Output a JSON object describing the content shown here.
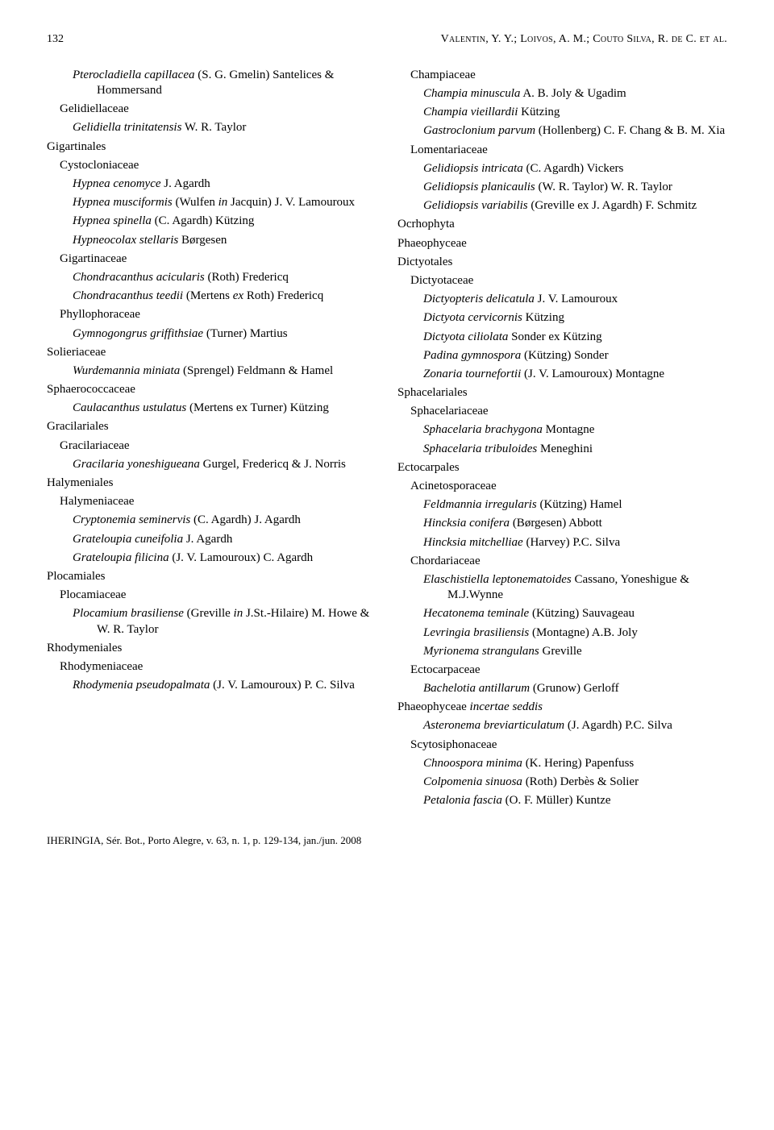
{
  "header": {
    "page_number": "132",
    "running_head": "Valentin, Y. Y.; Loivos, A. M.; Couto Silva, R. de C. et al."
  },
  "footer": "IHERINGIA, Sér. Bot., Porto Alegre, v. 63, n. 1, p. 129-134, jan./jun. 2008",
  "left": [
    {
      "lvl": 2,
      "html": "<em>Pterocladiella capillacea</em> (S. G. Gmelin) Santelices & Hommersand"
    },
    {
      "lvl": 1,
      "html": "Gelidiellaceae"
    },
    {
      "lvl": 2,
      "html": "<em>Gelidiella trinitatensis</em> W. R. Taylor"
    },
    {
      "lvl": 0,
      "html": "Gigartinales"
    },
    {
      "lvl": 1,
      "html": "Cystocloniaceae"
    },
    {
      "lvl": 2,
      "html": "<em>Hypnea cenomyce</em> J. Agardh"
    },
    {
      "lvl": 2,
      "html": "<em>Hypnea musciformis</em> (Wulfen <em>in</em> Jacquin) J. V. Lamouroux"
    },
    {
      "lvl": 2,
      "html": "<em>Hypnea spinella</em> (C. Agardh) Kützing"
    },
    {
      "lvl": 2,
      "html": "<em>Hypneocolax stellaris</em> Børgesen"
    },
    {
      "lvl": 1,
      "html": "Gigartinaceae"
    },
    {
      "lvl": 2,
      "html": "<em>Chondracanthus acicularis</em> (Roth) Fredericq"
    },
    {
      "lvl": 2,
      "html": "<em>Chondracanthus teedii</em> (Mertens <em>ex</em> Roth) Fredericq"
    },
    {
      "lvl": 1,
      "html": "Phyllophoraceae"
    },
    {
      "lvl": 2,
      "html": "<em>Gymnogongrus griffithsiae</em> (Turner) Martius"
    },
    {
      "lvl": 0,
      "html": "Solieriaceae"
    },
    {
      "lvl": 2,
      "html": "<em>Wurdemannia miniata</em> (Sprengel) Feldmann & Hamel"
    },
    {
      "lvl": 0,
      "html": "Sphaerococcaceae"
    },
    {
      "lvl": 2,
      "html": "<em>Caulacanthus ustulatus</em> (Mertens ex Turner) Kützing"
    },
    {
      "lvl": 0,
      "html": "Gracilariales"
    },
    {
      "lvl": 1,
      "html": "Gracilariaceae"
    },
    {
      "lvl": 2,
      "html": "<em>Gracilaria yoneshigueana</em> Gurgel, Fredericq & J. Norris"
    },
    {
      "lvl": 0,
      "html": "Halymeniales"
    },
    {
      "lvl": 1,
      "html": "Halymeniaceae"
    },
    {
      "lvl": 2,
      "html": "<em>Cryptonemia seminervis</em> (C. Agardh) J. Agardh"
    },
    {
      "lvl": 2,
      "html": "<em>Grateloupia cuneifolia</em> J. Agardh"
    },
    {
      "lvl": 2,
      "html": "<em>Grateloupia filicina</em> (J. V. Lamouroux) C. Agardh"
    },
    {
      "lvl": 0,
      "html": "Plocamiales"
    },
    {
      "lvl": 1,
      "html": "Plocamiaceae"
    },
    {
      "lvl": 2,
      "html": "<em>Plocamium brasiliense</em> (Greville <em>in</em> J.St.-Hilaire) M. Howe & W. R. Taylor"
    },
    {
      "lvl": 0,
      "html": "Rhodymeniales"
    },
    {
      "lvl": 1,
      "html": "Rhodymeniaceae"
    },
    {
      "lvl": 2,
      "html": "<em>Rhodymenia pseudopalmata</em> (J. V. Lamouroux) P. C. Silva"
    }
  ],
  "right": [
    {
      "lvl": 1,
      "html": "Champiaceae"
    },
    {
      "lvl": 2,
      "html": "<em>Champia minuscula</em> A. B. Joly & Ugadim"
    },
    {
      "lvl": 2,
      "html": "<em>Champia vieillardii</em> Kützing"
    },
    {
      "lvl": 2,
      "html": "<em>Gastroclonium parvum</em> (Hollenberg) C. F. Chang & B. M. Xia"
    },
    {
      "lvl": 1,
      "html": "Lomentariaceae"
    },
    {
      "lvl": 2,
      "html": "<em>Gelidiopsis intricata</em> (C. Agardh) Vickers"
    },
    {
      "lvl": 2,
      "html": "<em>Gelidiopsis planicaulis</em> (W. R. Taylor) W. R. Taylor"
    },
    {
      "lvl": 2,
      "html": "<em>Gelidiopsis variabilis</em> (Greville ex J. Agardh) F. Schmitz"
    },
    {
      "lvl": 0,
      "html": "Ocrhophyta"
    },
    {
      "lvl": 0,
      "html": "Phaeophyceae"
    },
    {
      "lvl": 0,
      "html": "Dictyotales"
    },
    {
      "lvl": 1,
      "html": "Dictyotaceae"
    },
    {
      "lvl": 2,
      "html": "<em>Dictyopteris delicatula</em> J. V. Lamouroux"
    },
    {
      "lvl": 2,
      "html": "<em>Dictyota cervicornis</em> Kützing"
    },
    {
      "lvl": 2,
      "html": "<em>Dictyota ciliolata</em> Sonder ex Kützing"
    },
    {
      "lvl": 2,
      "html": "<em>Padina gymnospora</em> (Kützing) Sonder"
    },
    {
      "lvl": 2,
      "html": "<em>Zonaria tournefortii</em> (J. V. Lamouroux) Montagne"
    },
    {
      "lvl": 0,
      "html": "Sphacelariales"
    },
    {
      "lvl": 1,
      "html": "Sphacelariaceae"
    },
    {
      "lvl": 2,
      "html": "<em>Sphacelaria brachygona</em> Montagne"
    },
    {
      "lvl": 2,
      "html": "<em>Sphacelaria tribuloides</em> Meneghini"
    },
    {
      "lvl": 0,
      "html": "Ectocarpales"
    },
    {
      "lvl": 1,
      "html": "Acinetosporaceae"
    },
    {
      "lvl": 2,
      "html": "<em>Feldmannia irregularis</em> (Kützing) Hamel"
    },
    {
      "lvl": 2,
      "html": "<em>Hincksia conifera</em> (Børgesen) Abbott"
    },
    {
      "lvl": 2,
      "html": "<em>Hincksia mitchelliae</em> (Harvey) P.C. Silva"
    },
    {
      "lvl": 1,
      "html": "Chordariaceae"
    },
    {
      "lvl": 2,
      "html": "<em>Elaschistiella leptonematoides</em> Cassano, Yoneshigue & M.J.Wynne"
    },
    {
      "lvl": 2,
      "html": "<em>Hecatonema teminale</em> (Kützing) Sauvageau"
    },
    {
      "lvl": 2,
      "html": "<em>Levringia brasiliensis</em> (Montagne) A.B. Joly"
    },
    {
      "lvl": 2,
      "html": "<em>Myrionema strangulans</em> Greville"
    },
    {
      "lvl": 1,
      "html": "Ectocarpaceae"
    },
    {
      "lvl": 2,
      "html": "<em>Bachelotia antillarum</em> (Grunow) Gerloff"
    },
    {
      "lvl": 0,
      "html": "Phaeophyceae <em>incertae seddis</em>"
    },
    {
      "lvl": 2,
      "html": "<em>Asteronema breviarticulatum</em> (J. Agardh) P.C. Silva"
    },
    {
      "lvl": 1,
      "html": "Scytosiphonaceae"
    },
    {
      "lvl": 2,
      "html": "<em>Chnoospora minima</em> (K. Hering) Papenfuss"
    },
    {
      "lvl": 2,
      "html": "<em>Colpomenia sinuosa</em> (Roth) Derbès & Solier"
    },
    {
      "lvl": 2,
      "html": "<em>Petalonia fascia</em> (O. F. Müller) Kuntze"
    }
  ]
}
